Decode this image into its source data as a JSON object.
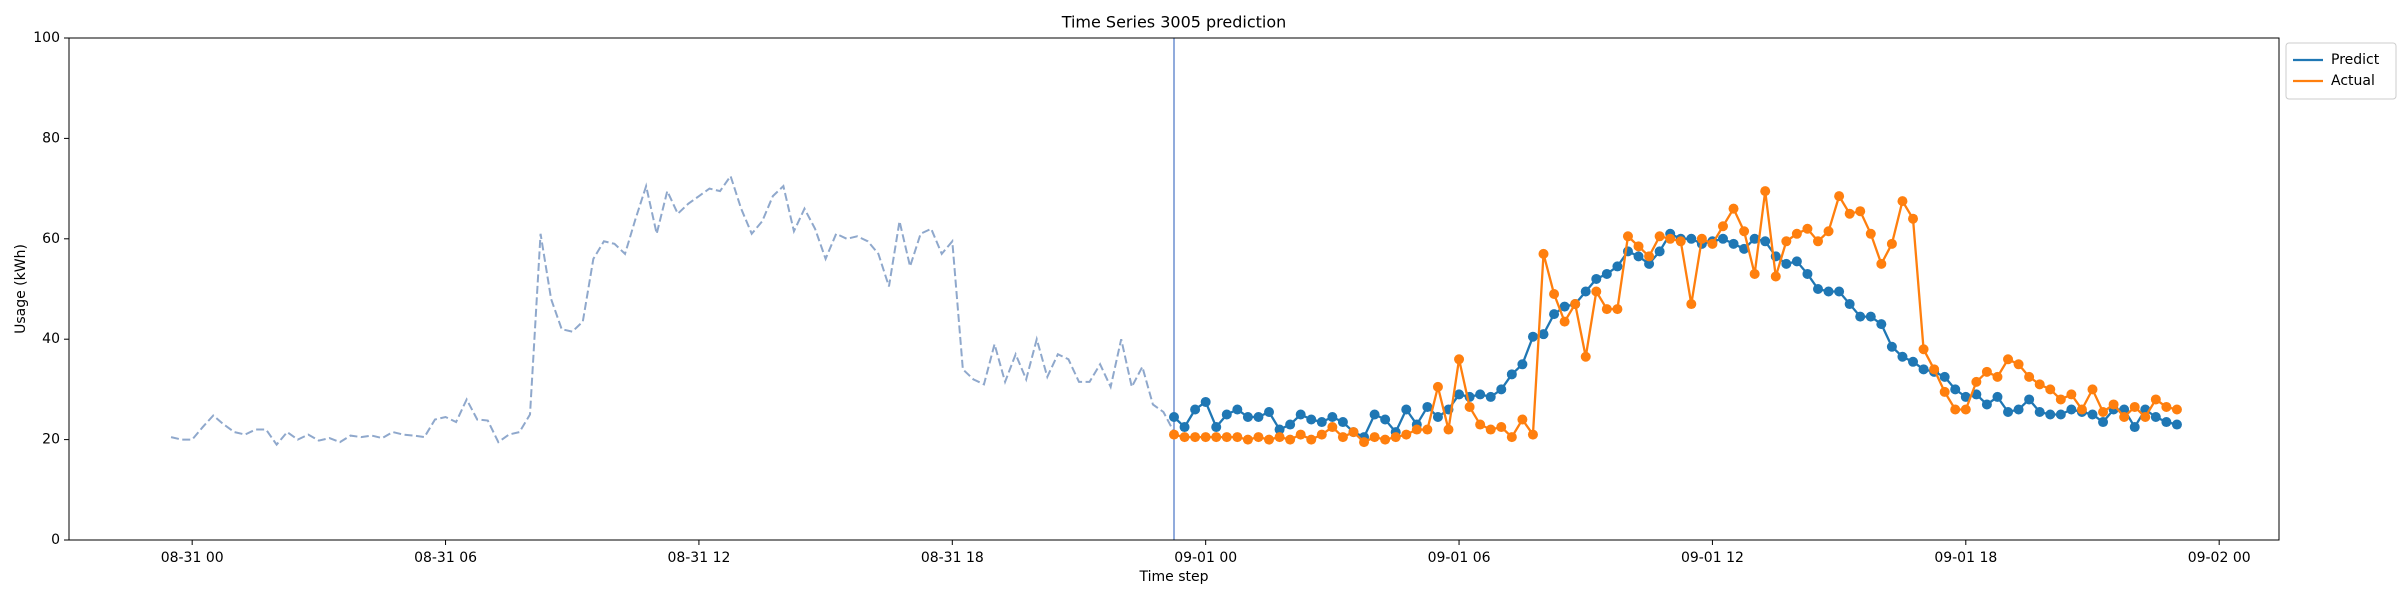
{
  "chart_data": {
    "type": "line",
    "title": "Time Series 3005 prediction",
    "x_label": "Time step",
    "y_label": "Usage (kWh)",
    "xlim": [
      "08-30 21:05",
      "09-02 01:25"
    ],
    "xticks": [
      {
        "value": "08-31 00:00",
        "label": "08-31 00"
      },
      {
        "value": "08-31 06:00",
        "label": "08-31 06"
      },
      {
        "value": "08-31 12:00",
        "label": "08-31 12"
      },
      {
        "value": "08-31 18:00",
        "label": "08-31 18"
      },
      {
        "value": "09-01 00:00",
        "label": "09-01 00"
      },
      {
        "value": "09-01 06:00",
        "label": "09-01 06"
      },
      {
        "value": "09-01 12:00",
        "label": "09-01 12"
      },
      {
        "value": "09-01 18:00",
        "label": "09-01 18"
      },
      {
        "value": "09-02 00:00",
        "label": "09-02 00"
      }
    ],
    "ylim": [
      0,
      100
    ],
    "yticks": [
      0,
      20,
      40,
      60,
      80,
      100
    ],
    "legend": "outside upper right",
    "history": {
      "color": "#8fa8cc",
      "dashed": true,
      "x": [
        "08-30 23:30",
        "08-30 23:45",
        "08-31 00:00",
        "08-31 00:15",
        "08-31 00:30",
        "08-31 00:45",
        "08-31 01:00",
        "08-31 01:15",
        "08-31 01:30",
        "08-31 01:45",
        "08-31 02:00",
        "08-31 02:15",
        "08-31 02:30",
        "08-31 02:45",
        "08-31 03:00",
        "08-31 03:15",
        "08-31 03:30",
        "08-31 03:45",
        "08-31 04:00",
        "08-31 04:15",
        "08-31 04:30",
        "08-31 04:45",
        "08-31 05:00",
        "08-31 05:15",
        "08-31 05:30",
        "08-31 05:45",
        "08-31 06:00",
        "08-31 06:15",
        "08-31 06:30",
        "08-31 06:45",
        "08-31 07:00",
        "08-31 07:15",
        "08-31 07:30",
        "08-31 07:45",
        "08-31 08:00",
        "08-31 08:15",
        "08-31 08:30",
        "08-31 08:45",
        "08-31 09:00",
        "08-31 09:15",
        "08-31 09:30",
        "08-31 09:45",
        "08-31 10:00",
        "08-31 10:15",
        "08-31 10:30",
        "08-31 10:45",
        "08-31 11:00",
        "08-31 11:15",
        "08-31 11:30",
        "08-31 11:45",
        "08-31 12:00",
        "08-31 12:15",
        "08-31 12:30",
        "08-31 12:45",
        "08-31 13:00",
        "08-31 13:15",
        "08-31 13:30",
        "08-31 13:45",
        "08-31 14:00",
        "08-31 14:15",
        "08-31 14:30",
        "08-31 14:45",
        "08-31 15:00",
        "08-31 15:15",
        "08-31 15:30",
        "08-31 15:45",
        "08-31 16:00",
        "08-31 16:15",
        "08-31 16:30",
        "08-31 16:45",
        "08-31 17:00",
        "08-31 17:15",
        "08-31 17:30",
        "08-31 17:45",
        "08-31 18:00",
        "08-31 18:15",
        "08-31 18:30",
        "08-31 18:45",
        "08-31 19:00",
        "08-31 19:15",
        "08-31 19:30",
        "08-31 19:45",
        "08-31 20:00",
        "08-31 20:15",
        "08-31 20:30",
        "08-31 20:45",
        "08-31 21:00",
        "08-31 21:15",
        "08-31 21:30",
        "08-31 21:45",
        "08-31 22:00",
        "08-31 22:15",
        "08-31 22:30",
        "08-31 22:45",
        "08-31 23:00",
        "08-31 23:15"
      ],
      "values": [
        20.5,
        20,
        20,
        22.5,
        24.8,
        23,
        21.5,
        21,
        22,
        22,
        19,
        21.5,
        20,
        21,
        19.8,
        20.3,
        19.5,
        20.8,
        20.5,
        20.8,
        20.3,
        21.5,
        21,
        20.8,
        20.5,
        24,
        24.5,
        23.5,
        28,
        24,
        23.8,
        19.5,
        21,
        21.5,
        25,
        61,
        48,
        42,
        41.5,
        43.5,
        56,
        59.5,
        59,
        57,
        64,
        70.5,
        61,
        69.5,
        65,
        67,
        68.5,
        70,
        69.5,
        72.5,
        66,
        61,
        63.5,
        68.5,
        70.5,
        61.5,
        66,
        62,
        56,
        61,
        60,
        60.5,
        59.5,
        57,
        50.5,
        63.5,
        54.5,
        61,
        62,
        57,
        59.5,
        34,
        32,
        31,
        39,
        31.5,
        37,
        32,
        40,
        32.5,
        37,
        36,
        31.5,
        31.5,
        35,
        30.5,
        40,
        30.5,
        34.5,
        27,
        25.5,
        21.5
      ]
    },
    "x": [
      "08-31 23:15",
      "08-31 23:30",
      "08-31 23:45",
      "09-01 00:00",
      "09-01 00:15",
      "09-01 00:30",
      "09-01 00:45",
      "09-01 01:00",
      "09-01 01:15",
      "09-01 01:30",
      "09-01 01:45",
      "09-01 02:00",
      "09-01 02:15",
      "09-01 02:30",
      "09-01 02:45",
      "09-01 03:00",
      "09-01 03:15",
      "09-01 03:30",
      "09-01 03:45",
      "09-01 04:00",
      "09-01 04:15",
      "09-01 04:30",
      "09-01 04:45",
      "09-01 05:00",
      "09-01 05:15",
      "09-01 05:30",
      "09-01 05:45",
      "09-01 06:00",
      "09-01 06:15",
      "09-01 06:30",
      "09-01 06:45",
      "09-01 07:00",
      "09-01 07:15",
      "09-01 07:30",
      "09-01 07:45",
      "09-01 08:00",
      "09-01 08:15",
      "09-01 08:30",
      "09-01 08:45",
      "09-01 09:00",
      "09-01 09:15",
      "09-01 09:30",
      "09-01 09:45",
      "09-01 10:00",
      "09-01 10:15",
      "09-01 10:30",
      "09-01 10:45",
      "09-01 11:00",
      "09-01 11:15",
      "09-01 11:30",
      "09-01 11:45",
      "09-01 12:00",
      "09-01 12:15",
      "09-01 12:30",
      "09-01 12:45",
      "09-01 13:00",
      "09-01 13:15",
      "09-01 13:30",
      "09-01 13:45",
      "09-01 14:00",
      "09-01 14:15",
      "09-01 14:30",
      "09-01 14:45",
      "09-01 15:00",
      "09-01 15:15",
      "09-01 15:30",
      "09-01 15:45",
      "09-01 16:00",
      "09-01 16:15",
      "09-01 16:30",
      "09-01 16:45",
      "09-01 17:00",
      "09-01 17:15",
      "09-01 17:30",
      "09-01 17:45",
      "09-01 18:00",
      "09-01 18:15",
      "09-01 18:30",
      "09-01 18:45",
      "09-01 19:00",
      "09-01 19:15",
      "09-01 19:30",
      "09-01 19:45",
      "09-01 20:00",
      "09-01 20:15",
      "09-01 20:30",
      "09-01 20:45",
      "09-01 21:00",
      "09-01 21:15",
      "09-01 21:30",
      "09-01 21:45",
      "09-01 22:00",
      "09-01 22:15",
      "09-01 22:30",
      "09-01 22:45",
      "09-01 23:00"
    ],
    "series": [
      {
        "name": "Predict",
        "color": "#1f77b4",
        "values": [
          24.5,
          22.5,
          26,
          27.5,
          22.5,
          25,
          26,
          24.5,
          24.5,
          25.5,
          22,
          23,
          25,
          24,
          23.5,
          24.5,
          23.5,
          21.5,
          20.5,
          25,
          24,
          21.5,
          26,
          23,
          26.5,
          24.5,
          26,
          29,
          28.5,
          29,
          28.5,
          30,
          33,
          35,
          40.5,
          41,
          45,
          46.5,
          47,
          49.5,
          52,
          53,
          54.5,
          57.5,
          56.5,
          55,
          57.5,
          61,
          60,
          60,
          59,
          59.5,
          60,
          59,
          58,
          60,
          59.5,
          56.5,
          55,
          55.5,
          53,
          50,
          49.5,
          49.5,
          47,
          44.5,
          44.5,
          43,
          38.5,
          36.5,
          35.5,
          34,
          33.5,
          32.5,
          30,
          28.5,
          29,
          27,
          28.5,
          25.5,
          26,
          28,
          25.5,
          25,
          25,
          26,
          25.5,
          25,
          23.5,
          26,
          26,
          22.5,
          26,
          24.5,
          23.5,
          23
        ]
      },
      {
        "name": "Actual",
        "color": "#ff7f0e",
        "values": [
          21,
          20.5,
          20.5,
          20.5,
          20.5,
          20.5,
          20.5,
          20,
          20.5,
          20,
          20.5,
          20,
          21,
          20,
          21,
          22.5,
          20.5,
          21.5,
          19.5,
          20.5,
          20,
          20.5,
          21,
          22,
          22,
          30.5,
          22,
          36,
          26.5,
          23,
          22,
          22.5,
          20.5,
          24,
          21,
          57,
          49,
          43.5,
          47,
          36.5,
          49.5,
          46,
          46,
          60.5,
          58.5,
          56.5,
          60.5,
          60,
          59.5,
          47,
          60,
          59,
          62.5,
          66,
          61.5,
          53,
          69.5,
          52.5,
          59.5,
          61,
          62,
          59.5,
          61.5,
          68.5,
          65,
          65.5,
          61,
          55,
          59,
          67.5,
          64,
          38,
          34,
          29.5,
          26,
          26,
          31.5,
          33.5,
          32.5,
          36,
          35,
          32.5,
          31,
          30,
          28,
          29,
          26,
          30,
          25.5,
          27,
          24.5,
          26.5,
          24.5,
          28,
          26.5,
          26
        ]
      }
    ]
  }
}
